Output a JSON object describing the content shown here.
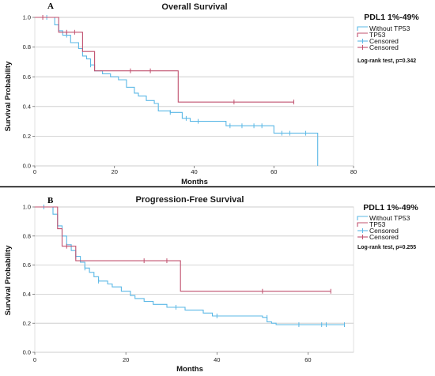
{
  "chart_data": [
    {
      "type": "line",
      "panel_letter": "A",
      "title": "Overall Survival",
      "xlabel": "Months",
      "ylabel": "Survival Probability",
      "xlim": [
        0,
        80
      ],
      "ylim": [
        0,
        1.0
      ],
      "x_ticks": [
        "0",
        "20",
        "40",
        "60",
        "80"
      ],
      "y_ticks": [
        "0.0",
        "0.2",
        "0.4",
        "0.6",
        "0.8",
        "1.0"
      ],
      "grid": "horizontal",
      "legend": {
        "title": "PDL1 1%-49%",
        "position": "right",
        "entries": [
          "Without TP53",
          "TP53",
          "Censored",
          "Censored"
        ]
      },
      "annotation": "Log-rank test, p=0.342",
      "series": [
        {
          "name": "Without TP53",
          "color": "#5bb8e6",
          "steps": [
            [
              0,
              1.0
            ],
            [
              5,
              0.95
            ],
            [
              6,
              0.91
            ],
            [
              7,
              0.88
            ],
            [
              9,
              0.83
            ],
            [
              11,
              0.79
            ],
            [
              12,
              0.74
            ],
            [
              13,
              0.72
            ],
            [
              14,
              0.68
            ],
            [
              15,
              0.64
            ],
            [
              17,
              0.62
            ],
            [
              19,
              0.6
            ],
            [
              21,
              0.58
            ],
            [
              23,
              0.53
            ],
            [
              25,
              0.49
            ],
            [
              26,
              0.47
            ],
            [
              28,
              0.44
            ],
            [
              30,
              0.42
            ],
            [
              31,
              0.37
            ],
            [
              34,
              0.36
            ],
            [
              37,
              0.32
            ],
            [
              39,
              0.3
            ],
            [
              48,
              0.27
            ],
            [
              60,
              0.22
            ],
            [
              71,
              0.0
            ]
          ],
          "end": 71,
          "censored": [
            [
              3,
              1.0
            ],
            [
              8,
              0.88
            ],
            [
              14,
              0.68
            ],
            [
              34,
              0.36
            ],
            [
              38,
              0.32
            ],
            [
              41,
              0.3
            ],
            [
              49,
              0.27
            ],
            [
              52,
              0.27
            ],
            [
              55,
              0.27
            ],
            [
              57,
              0.27
            ],
            [
              62,
              0.22
            ],
            [
              64,
              0.22
            ],
            [
              68,
              0.22
            ]
          ]
        },
        {
          "name": "TP53",
          "color": "#c0506e",
          "steps": [
            [
              0,
              1.0
            ],
            [
              6,
              0.9
            ],
            [
              12,
              0.77
            ],
            [
              15,
              0.64
            ],
            [
              36,
              0.43
            ]
          ],
          "end": 65,
          "censored": [
            [
              2,
              1.0
            ],
            [
              8,
              0.9
            ],
            [
              10,
              0.9
            ],
            [
              24,
              0.64
            ],
            [
              29,
              0.64
            ],
            [
              50,
              0.43
            ],
            [
              65,
              0.43
            ]
          ]
        }
      ]
    },
    {
      "type": "line",
      "panel_letter": "B",
      "title": "Progression-Free Survival",
      "xlabel": "Months",
      "ylabel": "Survival Probability",
      "xlim": [
        0,
        70
      ],
      "ylim": [
        0,
        1.0
      ],
      "x_ticks": [
        "0",
        "20",
        "40",
        "60"
      ],
      "y_ticks": [
        "0.0",
        "0.2",
        "0.4",
        "0.6",
        "0.8",
        "1.0"
      ],
      "grid": "horizontal",
      "legend": {
        "title": "PDL1 1%-49%",
        "position": "right",
        "entries": [
          "Without TP53",
          "TP53",
          "Censored",
          "Censored"
        ]
      },
      "annotation": "Log-rank test, p=0.255",
      "series": [
        {
          "name": "Without TP53",
          "color": "#5bb8e6",
          "steps": [
            [
              0,
              1.0
            ],
            [
              4,
              0.95
            ],
            [
              5,
              0.87
            ],
            [
              6,
              0.8
            ],
            [
              7,
              0.74
            ],
            [
              8,
              0.7
            ],
            [
              9,
              0.66
            ],
            [
              10,
              0.62
            ],
            [
              11,
              0.58
            ],
            [
              12,
              0.55
            ],
            [
              13,
              0.52
            ],
            [
              14,
              0.49
            ],
            [
              16,
              0.47
            ],
            [
              17,
              0.45
            ],
            [
              19,
              0.42
            ],
            [
              21,
              0.39
            ],
            [
              22,
              0.37
            ],
            [
              24,
              0.35
            ],
            [
              26,
              0.33
            ],
            [
              29,
              0.31
            ],
            [
              33,
              0.29
            ],
            [
              37,
              0.27
            ],
            [
              39,
              0.25
            ],
            [
              50,
              0.24
            ],
            [
              51,
              0.21
            ],
            [
              52,
              0.2
            ],
            [
              53,
              0.19
            ]
          ],
          "end": 68,
          "censored": [
            [
              2,
              1.0
            ],
            [
              9,
              0.66
            ],
            [
              11,
              0.58
            ],
            [
              14,
              0.49
            ],
            [
              31,
              0.31
            ],
            [
              40,
              0.25
            ],
            [
              51,
              0.24
            ],
            [
              58,
              0.19
            ],
            [
              63,
              0.19
            ],
            [
              64,
              0.19
            ],
            [
              68,
              0.19
            ]
          ]
        },
        {
          "name": "TP53",
          "color": "#c0506e",
          "steps": [
            [
              0,
              1.0
            ],
            [
              5,
              0.85
            ],
            [
              6,
              0.73
            ],
            [
              9,
              0.63
            ],
            [
              32,
              0.42
            ]
          ],
          "end": 65,
          "censored": [
            [
              7,
              0.73
            ],
            [
              24,
              0.63
            ],
            [
              29,
              0.63
            ],
            [
              50,
              0.42
            ],
            [
              65,
              0.42
            ]
          ]
        }
      ]
    }
  ]
}
